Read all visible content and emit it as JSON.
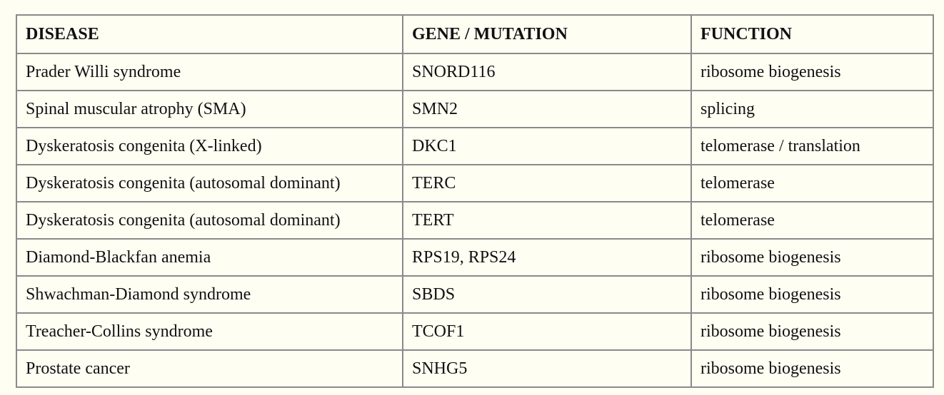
{
  "table": {
    "headers": [
      "DISEASE",
      "GENE / MUTATION",
      "FUNCTION"
    ],
    "rows": [
      [
        "Prader Willi syndrome",
        "SNORD116",
        "ribosome biogenesis"
      ],
      [
        "Spinal muscular atrophy (SMA)",
        "SMN2",
        "splicing"
      ],
      [
        "Dyskeratosis congenita (X-linked)",
        "DKC1",
        "telomerase / translation"
      ],
      [
        "Dyskeratosis congenita (autosomal dominant)",
        "TERC",
        "telomerase"
      ],
      [
        "Dyskeratosis congenita (autosomal dominant)",
        "TERT",
        "telomerase"
      ],
      [
        "Diamond-Blackfan anemia",
        "RPS19, RPS24",
        "ribosome biogenesis"
      ],
      [
        "Shwachman-Diamond syndrome",
        "SBDS",
        "ribosome biogenesis"
      ],
      [
        "Treacher-Collins syndrome",
        "TCOF1",
        "ribosome biogenesis"
      ],
      [
        "Prostate cancer",
        "SNHG5",
        "ribosome biogenesis"
      ]
    ]
  },
  "colors": {
    "background": "#fffef3",
    "border": "#8a8a8a",
    "text": "#111111"
  }
}
